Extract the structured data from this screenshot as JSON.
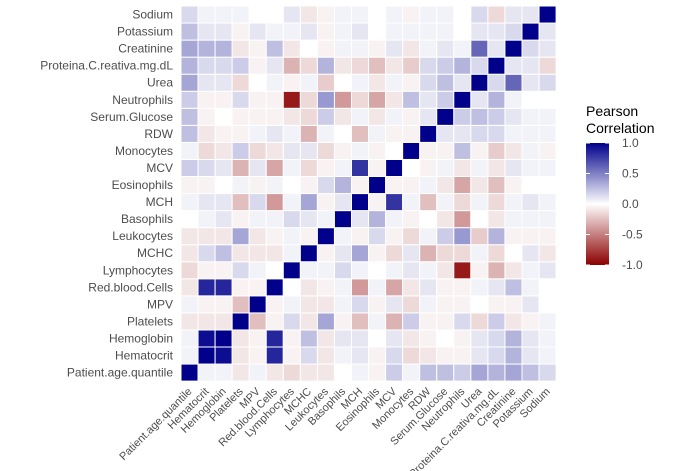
{
  "chart_data": {
    "type": "heatmap",
    "title": "",
    "xlabel": "",
    "ylabel": "",
    "variables": [
      "Patient.age.quantile",
      "Hematocrit",
      "Hemoglobin",
      "Platelets",
      "MPV",
      "Red.blood.Cells",
      "Lymphocytes",
      "MCHC",
      "Leukocytes",
      "Basophils",
      "MCH",
      "Eosinophils",
      "MCV",
      "Monocytes",
      "RDW",
      "Serum.Glucose",
      "Neutrophils",
      "Urea",
      "Proteina.C.reativa.mg.dL",
      "Creatinine",
      "Potassium",
      "Sodium"
    ],
    "matrix": [
      [
        1.0,
        0.05,
        0.05,
        -0.1,
        0.05,
        -0.1,
        -0.15,
        -0.1,
        -0.1,
        0.0,
        0.05,
        -0.05,
        0.2,
        0.05,
        0.25,
        0.25,
        0.2,
        0.35,
        0.3,
        0.35,
        0.25,
        0.15
      ],
      [
        0.05,
        1.0,
        0.95,
        -0.1,
        -0.05,
        0.85,
        -0.05,
        0.15,
        -0.1,
        0.05,
        0.1,
        -0.05,
        0.15,
        -0.15,
        -0.1,
        -0.05,
        -0.05,
        0.1,
        0.15,
        0.3,
        0.1,
        0.05
      ],
      [
        0.05,
        0.95,
        1.0,
        -0.1,
        -0.05,
        0.85,
        -0.05,
        0.25,
        -0.1,
        0.1,
        0.1,
        0.0,
        0.1,
        -0.1,
        -0.05,
        0.0,
        -0.05,
        0.1,
        0.15,
        0.3,
        0.1,
        0.05
      ],
      [
        -0.1,
        -0.1,
        -0.1,
        1.0,
        -0.25,
        -0.05,
        0.15,
        -0.1,
        0.35,
        -0.05,
        -0.25,
        0.05,
        -0.3,
        0.2,
        -0.05,
        -0.05,
        0.15,
        -0.15,
        0.2,
        -0.1,
        -0.05,
        0.05
      ],
      [
        0.05,
        -0.05,
        -0.05,
        -0.25,
        1.0,
        -0.05,
        0.05,
        -0.1,
        -0.1,
        0.05,
        0.15,
        -0.05,
        0.1,
        -0.15,
        0.05,
        -0.05,
        -0.05,
        0.0,
        -0.05,
        -0.05,
        0.1,
        0.0
      ],
      [
        -0.1,
        0.85,
        0.85,
        -0.05,
        -0.05,
        1.0,
        0.0,
        -0.1,
        -0.05,
        0.05,
        -0.4,
        0.05,
        -0.35,
        -0.1,
        0.1,
        -0.05,
        -0.05,
        0.05,
        0.1,
        0.25,
        0.05,
        0.0
      ],
      [
        -0.15,
        -0.05,
        -0.05,
        0.15,
        0.05,
        0.0,
        1.0,
        0.05,
        0.05,
        0.15,
        0.05,
        0.0,
        0.05,
        0.1,
        0.05,
        -0.1,
        -0.9,
        -0.05,
        -0.3,
        -0.1,
        0.05,
        0.1
      ],
      [
        -0.1,
        0.15,
        0.25,
        -0.1,
        -0.1,
        -0.1,
        0.05,
        1.0,
        -0.05,
        0.1,
        0.35,
        -0.05,
        -0.15,
        0.1,
        -0.3,
        -0.15,
        -0.15,
        0.05,
        -0.15,
        0.0,
        0.1,
        -0.1
      ],
      [
        -0.1,
        -0.1,
        -0.1,
        0.35,
        -0.1,
        -0.05,
        0.05,
        -0.05,
        1.0,
        0.05,
        -0.05,
        0.15,
        -0.05,
        -0.15,
        0.05,
        0.2,
        0.4,
        -0.2,
        0.3,
        -0.05,
        -0.05,
        -0.05
      ],
      [
        0.0,
        0.05,
        0.1,
        -0.05,
        0.05,
        0.05,
        0.15,
        0.1,
        0.05,
        1.0,
        0.1,
        0.3,
        0.05,
        -0.05,
        0.0,
        -0.1,
        -0.4,
        0.0,
        -0.1,
        0.05,
        0.05,
        0.05
      ],
      [
        0.05,
        0.1,
        0.1,
        -0.25,
        0.15,
        -0.4,
        0.05,
        0.35,
        -0.05,
        0.1,
        1.0,
        -0.05,
        0.8,
        0.05,
        -0.25,
        0.05,
        -0.15,
        0.05,
        -0.15,
        0.05,
        0.1,
        0.05
      ],
      [
        -0.05,
        -0.05,
        0.0,
        0.05,
        -0.05,
        0.05,
        0.0,
        -0.05,
        0.15,
        0.3,
        -0.05,
        1.0,
        -0.05,
        -0.05,
        0.05,
        -0.1,
        -0.35,
        -0.1,
        -0.25,
        -0.05,
        0.0,
        0.0
      ],
      [
        0.2,
        0.15,
        0.1,
        -0.3,
        0.1,
        -0.35,
        0.05,
        -0.15,
        -0.05,
        0.05,
        0.8,
        -0.05,
        1.0,
        0.0,
        -0.05,
        0.05,
        -0.1,
        0.05,
        -0.1,
        0.1,
        0.05,
        0.05
      ],
      [
        0.05,
        -0.15,
        -0.1,
        0.2,
        -0.15,
        -0.1,
        0.1,
        0.1,
        -0.15,
        -0.05,
        0.05,
        -0.05,
        0.0,
        1.0,
        -0.05,
        -0.05,
        0.25,
        -0.05,
        -0.2,
        -0.1,
        0.05,
        -0.05
      ],
      [
        0.25,
        -0.1,
        -0.05,
        -0.05,
        0.05,
        0.1,
        0.05,
        -0.3,
        0.05,
        0.0,
        -0.25,
        0.05,
        -0.05,
        -0.05,
        1.0,
        0.1,
        0.1,
        0.15,
        0.15,
        0.05,
        0.05,
        0.05
      ],
      [
        0.25,
        -0.05,
        0.0,
        -0.05,
        -0.05,
        -0.05,
        -0.1,
        -0.15,
        0.2,
        -0.1,
        0.05,
        -0.1,
        0.05,
        -0.05,
        0.1,
        1.0,
        0.2,
        0.25,
        0.2,
        0.1,
        0.05,
        0.05
      ],
      [
        0.2,
        -0.05,
        -0.05,
        0.15,
        -0.05,
        -0.05,
        -0.9,
        -0.15,
        0.4,
        -0.4,
        -0.15,
        -0.35,
        -0.1,
        0.25,
        0.1,
        0.2,
        1.0,
        0.1,
        0.3,
        0.05,
        0.0,
        0.0
      ],
      [
        0.35,
        0.1,
        0.1,
        -0.15,
        0.0,
        0.05,
        -0.05,
        0.05,
        -0.2,
        0.0,
        0.05,
        -0.1,
        0.05,
        -0.05,
        0.15,
        0.25,
        0.1,
        1.0,
        0.15,
        0.6,
        0.1,
        0.15
      ],
      [
        0.3,
        0.15,
        0.15,
        0.2,
        -0.05,
        0.1,
        -0.3,
        -0.15,
        0.3,
        -0.1,
        -0.15,
        -0.25,
        -0.1,
        -0.2,
        0.15,
        0.2,
        0.3,
        0.15,
        1.0,
        0.1,
        0.1,
        -0.15
      ],
      [
        0.35,
        0.3,
        0.3,
        -0.1,
        -0.05,
        0.25,
        -0.1,
        0.0,
        -0.05,
        0.05,
        0.05,
        -0.05,
        0.1,
        -0.1,
        0.05,
        0.1,
        0.05,
        0.6,
        0.1,
        1.0,
        0.15,
        0.1
      ],
      [
        0.25,
        0.1,
        0.1,
        -0.05,
        0.1,
        0.05,
        0.05,
        0.1,
        -0.05,
        0.05,
        0.1,
        0.0,
        0.05,
        0.05,
        0.05,
        0.05,
        0.0,
        0.1,
        0.1,
        0.15,
        1.0,
        0.1
      ],
      [
        0.15,
        0.05,
        0.05,
        0.05,
        0.0,
        0.0,
        0.1,
        -0.1,
        -0.05,
        0.05,
        0.05,
        0.0,
        0.05,
        -0.05,
        0.05,
        0.05,
        0.0,
        0.15,
        -0.15,
        0.1,
        0.1,
        1.0
      ]
    ],
    "color_scale": {
      "min": -1.0,
      "max": 1.0,
      "low_color": "#8b0000",
      "mid_color": "#ffffff",
      "high_color": "#00008b"
    },
    "legend": {
      "title_line1": "Pearson",
      "title_line2": "Correlation",
      "ticks": [
        "1.0",
        "0.5",
        "0.0",
        "-0.5",
        "-1.0"
      ],
      "tick_values": [
        1.0,
        0.5,
        0.0,
        -0.5,
        -1.0
      ],
      "placement": "right"
    },
    "grid": false
  }
}
